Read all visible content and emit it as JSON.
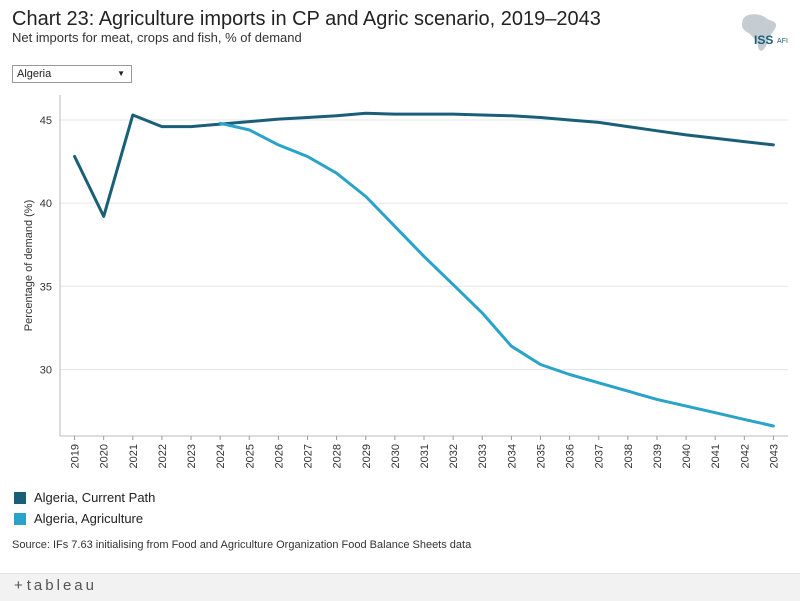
{
  "header": {
    "title": "Chart 23: Agriculture imports in CP and Agric scenario, 2019–2043",
    "subtitle": "Net imports for meat, crops and fish, % of demand",
    "logo_text": "ISS",
    "logo_suffix": "AFI"
  },
  "filter": {
    "selected": "Algeria"
  },
  "colors": {
    "current_path": "#1a5f78",
    "agriculture": "#2aa3c9",
    "grid": "#e6e6e6",
    "axis": "#555555"
  },
  "chart_data": {
    "type": "line",
    "title": "Chart 23: Agriculture imports in CP and Agric scenario, 2019–2043",
    "xlabel": "",
    "ylabel": "Percentage of demand (%)",
    "ylim": [
      26.0,
      46.5
    ],
    "yticks": [
      30,
      35,
      40,
      45
    ],
    "x": [
      "2019",
      "2020",
      "2021",
      "2022",
      "2023",
      "2024",
      "2025",
      "2026",
      "2027",
      "2028",
      "2029",
      "2030",
      "2031",
      "2032",
      "2033",
      "2034",
      "2035",
      "2036",
      "2037",
      "2038",
      "2039",
      "2040",
      "2041",
      "2042",
      "2043"
    ],
    "series": [
      {
        "name": "Algeria, Current Path",
        "color": "#1a5f78",
        "values": [
          42.8,
          39.2,
          45.3,
          44.6,
          44.6,
          44.75,
          44.9,
          45.05,
          45.15,
          45.25,
          45.4,
          45.35,
          45.35,
          45.35,
          45.3,
          45.25,
          45.15,
          45.0,
          44.85,
          44.6,
          44.35,
          44.1,
          43.9,
          43.7,
          43.5
        ]
      },
      {
        "name": "Algeria, Agriculture",
        "color": "#2aa3c9",
        "values": [
          null,
          null,
          null,
          null,
          null,
          44.8,
          44.4,
          43.5,
          42.8,
          41.8,
          40.4,
          38.6,
          36.8,
          35.1,
          33.4,
          31.4,
          30.3,
          29.7,
          29.2,
          28.7,
          28.2,
          27.8,
          27.4,
          27.0,
          26.6
        ]
      }
    ],
    "legend": [
      "Algeria, Current Path",
      "Algeria, Agriculture"
    ],
    "legend_position": "bottom-left",
    "grid": true
  },
  "source": "Source: IFs 7.63 initialising from Food and Agriculture Organization Food Balance Sheets data",
  "footer": {
    "brand": "tableau",
    "brand_mark": "+"
  }
}
